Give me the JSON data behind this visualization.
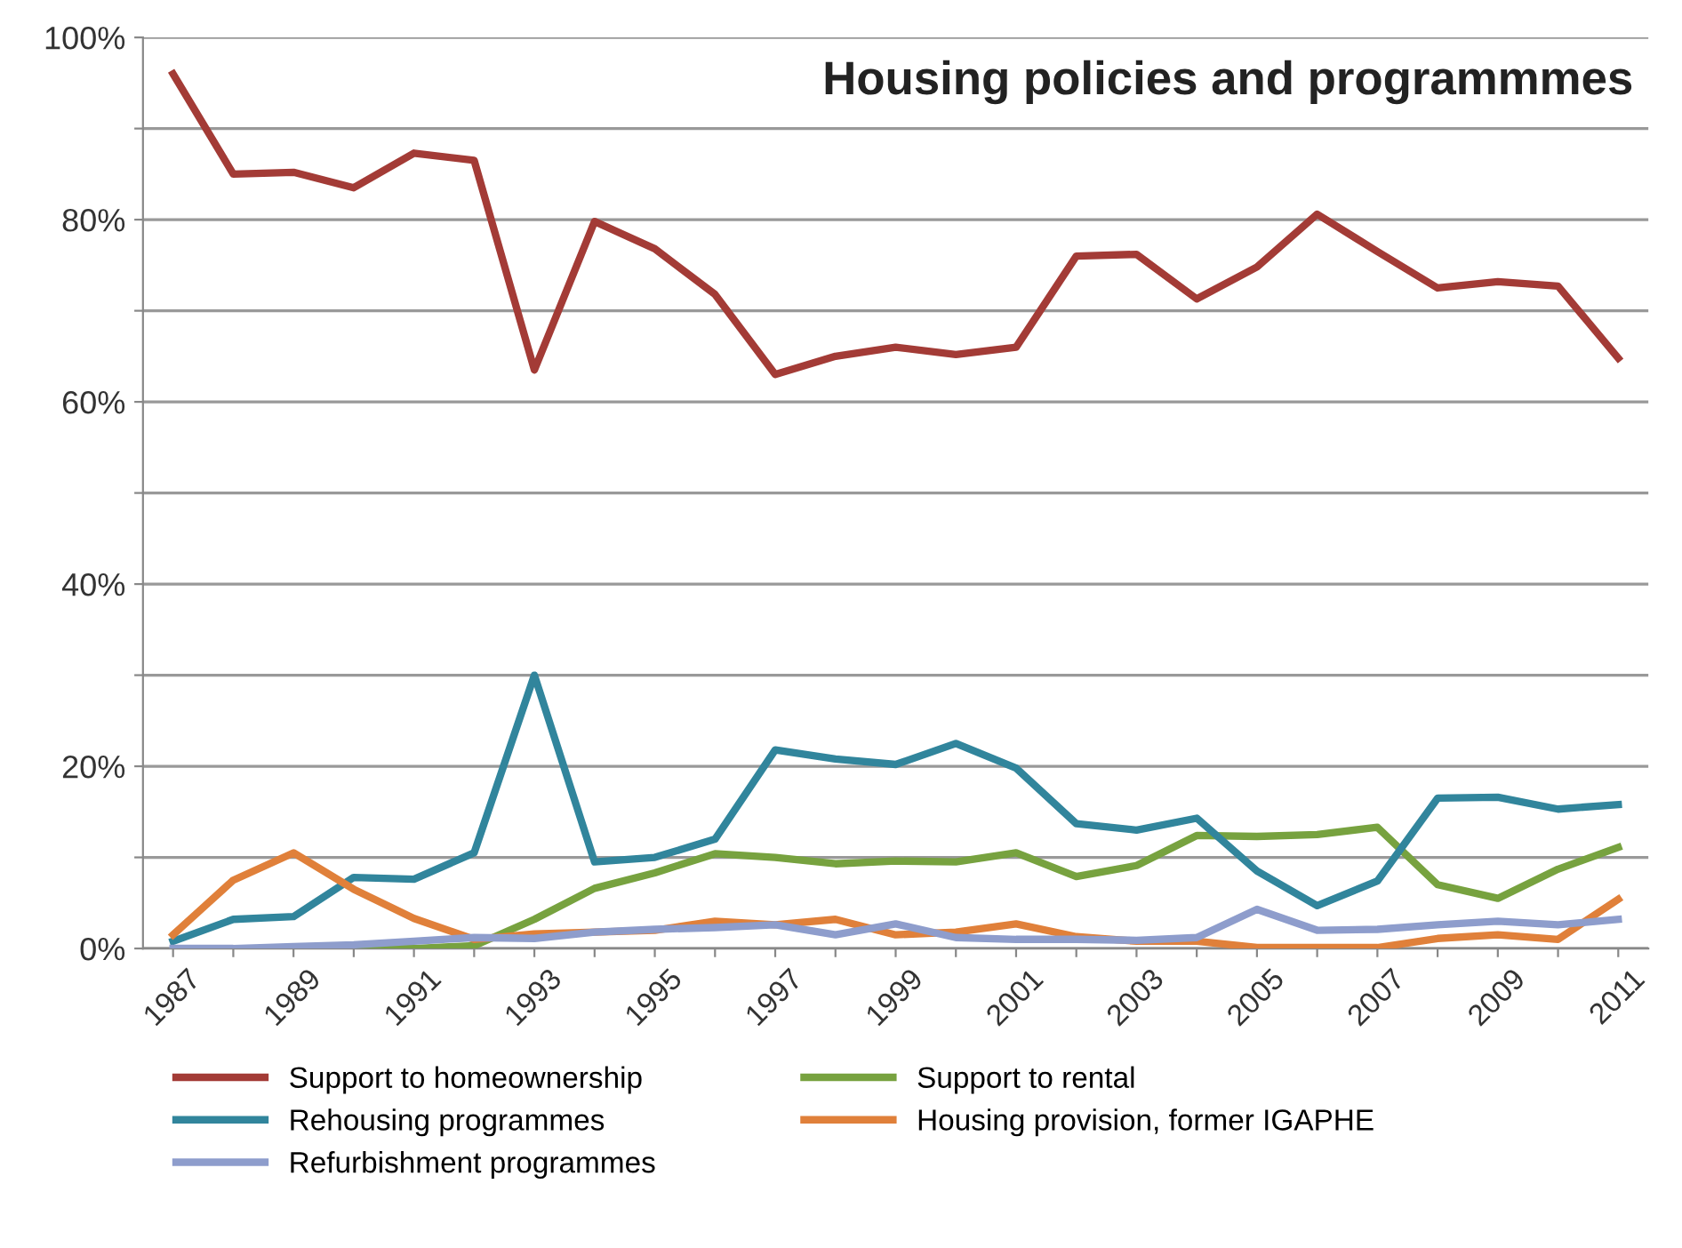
{
  "chart_data": {
    "type": "line",
    "title": "Housing policies and programmmes",
    "x": [
      1987,
      1988,
      1989,
      1990,
      1991,
      1992,
      1993,
      1994,
      1995,
      1996,
      1997,
      1998,
      1999,
      2000,
      2001,
      2002,
      2003,
      2004,
      2005,
      2006,
      2007,
      2008,
      2009,
      2010,
      2011
    ],
    "series": [
      {
        "name": "Support to homeownership",
        "color": "#a33b36",
        "values": [
          96,
          85,
          85.2,
          83.5,
          87.3,
          86.5,
          63.5,
          79.8,
          76.8,
          71.8,
          63,
          65,
          66,
          65.2,
          66,
          76,
          76.2,
          71.3,
          74.8,
          80.6,
          76.5,
          72.5,
          73.2,
          72.7,
          64.8
        ]
      },
      {
        "name": "Support to rental",
        "color": "#77a23f",
        "values": [
          null,
          null,
          0,
          0,
          0,
          0.3,
          3.2,
          6.6,
          8.3,
          10.4,
          10,
          9.3,
          9.6,
          9.5,
          10.5,
          7.9,
          9.1,
          12.4,
          12.3,
          12.5,
          13.3,
          7,
          5.5,
          8.7,
          11.1
        ]
      },
      {
        "name": "Rehousing programmes",
        "color": "#31859c",
        "values": [
          0.8,
          3.2,
          3.5,
          7.8,
          7.6,
          10.5,
          30,
          9.5,
          10,
          12,
          21.8,
          20.8,
          20.2,
          22.5,
          19.8,
          13.7,
          13,
          14.3,
          8.5,
          4.7,
          7.4,
          16.5,
          16.6,
          15.3,
          15.8
        ]
      },
      {
        "name": "Housing provision, former IGAPHE",
        "color": "#e0803a",
        "values": [
          1.5,
          7.5,
          10.5,
          6.5,
          3.3,
          1,
          1.6,
          1.8,
          2,
          3,
          2.6,
          3.2,
          1.5,
          1.8,
          2.7,
          1.3,
          0.8,
          0.8,
          0.1,
          0.1,
          0.1,
          1.1,
          1.5,
          1,
          5.4
        ]
      },
      {
        "name": "Refurbishment programmes",
        "color": "#8e9dcc",
        "values": [
          0,
          0,
          0.2,
          0.4,
          0.8,
          1.2,
          1.1,
          1.8,
          2.1,
          2.3,
          2.6,
          1.5,
          2.7,
          1.2,
          1,
          1,
          0.9,
          1.2,
          4.3,
          2,
          2.1,
          2.6,
          3,
          2.6,
          3.2
        ]
      }
    ],
    "xlim": [
      1986.5,
      2011.5
    ],
    "xticks": [
      1987,
      {
        "value": 1988,
        "label": null
      },
      1989,
      {
        "value": 1990,
        "label": null
      },
      1991,
      {
        "value": 1992,
        "label": null
      },
      1993,
      {
        "value": 1994,
        "label": null
      },
      1995,
      {
        "value": 1996,
        "label": null
      },
      1997,
      {
        "value": 1998,
        "label": null
      },
      1999,
      {
        "value": 2000,
        "label": null
      },
      2001,
      {
        "value": 2002,
        "label": null
      },
      2003,
      {
        "value": 2004,
        "label": null
      },
      2005,
      {
        "value": 2006,
        "label": null
      },
      2007,
      {
        "value": 2008,
        "label": null
      },
      2009,
      {
        "value": 2010,
        "label": null
      },
      2011
    ],
    "ylim": [
      0,
      100
    ],
    "yticks": [
      {
        "value": 0,
        "label": "0%"
      },
      {
        "value": 10,
        "label": null
      },
      {
        "value": 20,
        "label": "20%"
      },
      {
        "value": 30,
        "label": null
      },
      {
        "value": 40,
        "label": "40%"
      },
      {
        "value": 50,
        "label": null
      },
      {
        "value": 60,
        "label": "60%"
      },
      {
        "value": 70,
        "label": null
      },
      {
        "value": 80,
        "label": "80%"
      },
      {
        "value": 90,
        "label": null
      },
      {
        "value": 100,
        "label": "100%"
      }
    ],
    "grid": "y",
    "legend": "bottom",
    "marker": "none",
    "line_style": "solid"
  }
}
